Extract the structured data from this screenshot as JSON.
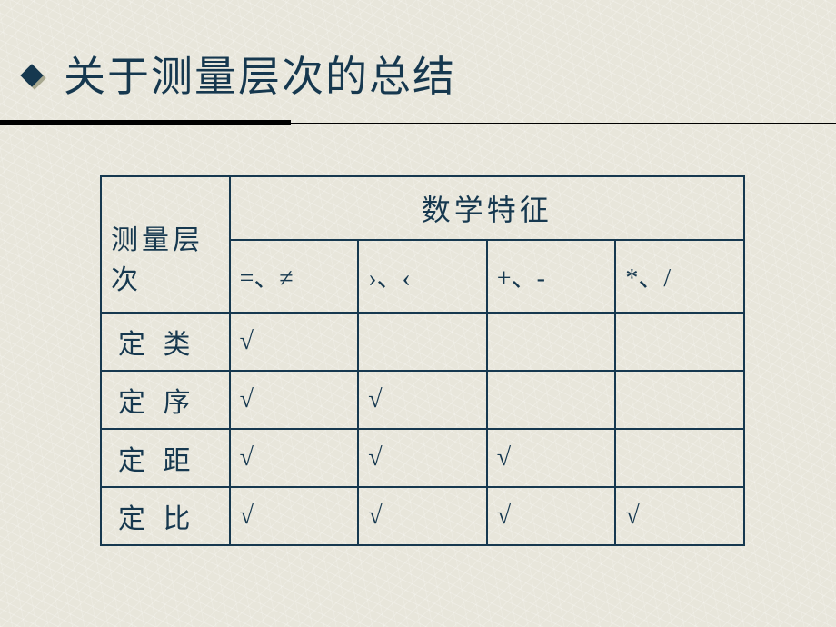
{
  "slide": {
    "title": "关于测量层次的总结",
    "background_color": "#e8e6db",
    "title_color": "#16384f",
    "title_fontsize": 46,
    "bullet_color": "#16384f",
    "bullet_shadow": "#a8a890"
  },
  "table": {
    "border_color": "#16384f",
    "text_color": "#16384f",
    "first_col_header": "测量层次",
    "merged_header": "数学特征",
    "sub_headers": [
      "=、≠",
      "›、‹",
      "+、-",
      "*、/"
    ],
    "rows": [
      {
        "label": "定 类",
        "cells": [
          "√",
          "",
          "",
          ""
        ]
      },
      {
        "label": "定 序",
        "cells": [
          "√",
          "√",
          "",
          ""
        ]
      },
      {
        "label": "定 距",
        "cells": [
          "√",
          "√",
          "√",
          ""
        ]
      },
      {
        "label": "定 比",
        "cells": [
          "√",
          "√",
          "√",
          "√"
        ]
      }
    ],
    "check_mark": "√",
    "cell_fontsize": 30,
    "header_fontsize": 32
  }
}
